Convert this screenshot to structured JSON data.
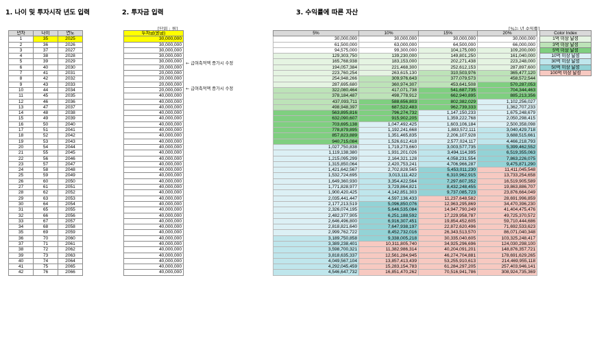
{
  "headers": {
    "h1": "1. 나이 및 투자시작 년도 입력",
    "h2": "2. 투자금 입력",
    "h3": "3. 수익률에 따른 자산"
  },
  "unit_label": "[단위 : 원]",
  "rate_label": "[%는 년 수익률]",
  "table1": {
    "headers": [
      "년차",
      "나이",
      "연도"
    ],
    "start_age": 35,
    "start_year": 2025,
    "count": 42
  },
  "table2": {
    "header": "투자금(원금)",
    "values": [
      "30,000,000",
      "30,000,000",
      "30,000,000",
      "30,000,000",
      "30,000,000",
      "20,000,000",
      "20,000,000",
      "20,000,000",
      "20,000,000",
      "20,000,000",
      "40,000,000",
      "40,000,000",
      "40,000,000",
      "40,000,000",
      "40,000,000",
      "40,000,000",
      "40,000,000",
      "40,000,000",
      "40,000,000",
      "40,000,000",
      "40,000,000",
      "40,000,000",
      "40,000,000",
      "40,000,000",
      "40,000,000",
      "40,000,000",
      "40,000,000",
      "40,000,000",
      "40,000,000",
      "40,000,000",
      "40,000,000",
      "40,000,000",
      "40,000,000",
      "40,000,000",
      "40,000,000",
      "40,000,000",
      "40,000,000",
      "40,000,000",
      "40,000,000",
      "40,000,000",
      "40,000,000",
      "40,000,000"
    ]
  },
  "notes": [
    {
      "row": 6,
      "text": "← 급여축적액 증가시 수정"
    },
    {
      "row": 11,
      "text": "← 급여축적액 증가시 수정"
    }
  ],
  "table3": {
    "headers": [
      "5%",
      "10%",
      "15%",
      "20%"
    ],
    "rows": [
      [
        "30,000,000",
        "30,000,000",
        "30,000,000",
        "30,000,000"
      ],
      [
        "61,500,000",
        "63,000,000",
        "64,500,000",
        "66,000,000"
      ],
      [
        "94,575,000",
        "99,300,000",
        "104,175,000",
        "109,200,000"
      ],
      [
        "129,303,750",
        "139,230,000",
        "149,801,250",
        "161,040,000"
      ],
      [
        "165,768,938",
        "183,153,000",
        "202,271,438",
        "223,248,000"
      ],
      [
        "194,057,384",
        "221,468,300",
        "252,612,153",
        "287,897,600"
      ],
      [
        "223,760,254",
        "263,615,130",
        "310,503,976",
        "365,477,120"
      ],
      [
        "254,948,266",
        "309,976,643",
        "377,079,573",
        "458,572,544"
      ],
      [
        "287,695,680",
        "360,974,307",
        "453,641,508",
        "570,287,053"
      ],
      [
        "322,080,464",
        "417,071,738",
        "541,687,735",
        "704,344,463"
      ],
      [
        "378,184,487",
        "498,778,912",
        "662,940,895",
        "885,213,356"
      ],
      [
        "437,093,711",
        "588,656,803",
        "802,382,029",
        "1,102,256,027"
      ],
      [
        "498,948,397",
        "687,522,483",
        "962,739,333",
        "1,362,707,233"
      ],
      [
        "563,895,816",
        "796,274,732",
        "1,147,150,233",
        "1,675,248,679"
      ],
      [
        "632,090,607",
        "915,902,205",
        "1,359,222,768",
        "2,050,298,415"
      ],
      [
        "703,695,138",
        "1,047,492,425",
        "1,603,106,184",
        "2,500,358,098"
      ],
      [
        "778,879,895",
        "1,192,241,668",
        "1,883,572,111",
        "3,040,429,718"
      ],
      [
        "857,823,889",
        "1,351,465,835",
        "2,206,107,928",
        "3,688,515,661"
      ],
      [
        "940,715,084",
        "1,526,612,418",
        "2,577,024,117",
        "4,466,218,793"
      ],
      [
        "1,027,750,838",
        "1,719,273,660",
        "3,003,577,735",
        "5,399,462,552"
      ],
      [
        "1,119,138,380",
        "1,931,201,026",
        "3,494,114,395",
        "6,519,355,063"
      ],
      [
        "1,215,095,299",
        "2,164,321,128",
        "4,058,231,554",
        "7,863,226,075"
      ],
      [
        "1,315,850,064",
        "2,420,753,241",
        "4,706,966,287",
        "9,475,871,290"
      ],
      [
        "1,421,642,567",
        "2,702,828,565",
        "5,453,011,230",
        "11,411,045,548"
      ],
      [
        "1,532,724,695",
        "3,013,111,422",
        "6,310,962,915",
        "13,733,254,658"
      ],
      [
        "1,649,360,930",
        "3,354,422,564",
        "7,297,607,352",
        "16,519,905,589"
      ],
      [
        "1,771,828,977",
        "3,729,864,821",
        "8,432,248,455",
        "19,863,886,707"
      ],
      [
        "1,900,420,425",
        "4,142,851,303",
        "9,737,085,723",
        "23,876,664,049"
      ],
      [
        "2,035,441,447",
        "4,597,136,433",
        "11,237,648,582",
        "28,691,996,859"
      ],
      [
        "2,177,213,519",
        "5,096,850,076",
        "12,963,295,869",
        "34,470,396,230"
      ],
      [
        "2,326,074,195",
        "5,646,535,084",
        "14,947,790,249",
        "41,404,475,476"
      ],
      [
        "2,482,377,905",
        "6,251,188,592",
        "17,229,958,787",
        "49,725,370,572"
      ],
      [
        "2,646,496,800",
        "6,916,307,451",
        "19,854,452,605",
        "59,710,444,686"
      ],
      [
        "2,818,821,640",
        "7,647,938,197",
        "22,872,620,496",
        "71,692,533,623"
      ],
      [
        "2,999,762,722",
        "8,452,732,016",
        "26,343,513,570",
        "86,071,040,348"
      ],
      [
        "3,189,750,858",
        "9,338,005,218",
        "30,335,040,605",
        "103,325,248,417"
      ],
      [
        "3,389,238,401",
        "10,311,805,740",
        "34,925,296,696",
        "124,030,298,100"
      ],
      [
        "3,598,700,321",
        "11,382,986,314",
        "40,204,091,201",
        "148,876,357,721"
      ],
      [
        "3,818,635,337",
        "12,561,284,945",
        "46,274,704,881",
        "178,691,629,265"
      ],
      [
        "4,049,567,104",
        "13,857,413,439",
        "53,255,910,613",
        "214,469,955,118"
      ],
      [
        "4,292,045,459",
        "15,283,154,783",
        "61,284,297,205",
        "257,403,946,141"
      ],
      [
        "4,546,647,732",
        "16,851,470,262",
        "70,516,941,786",
        "308,924,735,369"
      ]
    ]
  },
  "legend": {
    "header": "Color Index",
    "items": [
      {
        "label": "1억 이상 달성",
        "color": "#e5f4e2"
      },
      {
        "label": "3억 이상 달성",
        "color": "#bde3b8"
      },
      {
        "label": "5억 이상 달성",
        "color": "#7fcf80"
      },
      {
        "label": "10억 이상 달성",
        "color": "#dcf0f5"
      },
      {
        "label": "30억 이상 달성",
        "color": "#bfe6ec"
      },
      {
        "label": "50억 이상 달성",
        "color": "#93d3d6"
      },
      {
        "label": "100억 이상 달성",
        "color": "#f7c9c1"
      }
    ]
  },
  "colors": {
    "highlight": "#ffff00",
    "header_bg": "#d9d9d9"
  }
}
